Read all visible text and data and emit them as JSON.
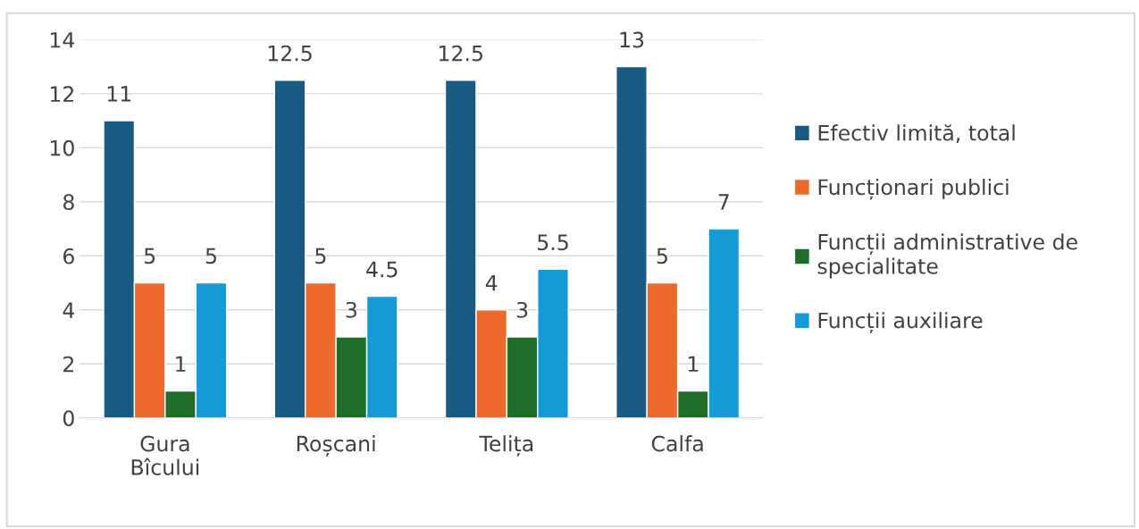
{
  "chart_data": {
    "type": "bar",
    "categories": [
      "Gura\nBîcului",
      "Roșcani",
      "Telița",
      "Calfa"
    ],
    "series": [
      {
        "name": "Efectiv limită, total",
        "color": "#1a5a80",
        "values": [
          11,
          12.5,
          12.5,
          13
        ]
      },
      {
        "name": "Funcționari publici",
        "color": "#ee6a2c",
        "values": [
          5,
          5,
          4,
          5
        ]
      },
      {
        "name": "Funcții administrative de\nspecialitate",
        "color": "#1e6e2a",
        "values": [
          1,
          3,
          3,
          1
        ]
      },
      {
        "name": "Funcții auxiliare",
        "color": "#159ad8",
        "values": [
          5,
          4.5,
          5.5,
          7
        ]
      }
    ],
    "ylim": [
      0,
      14
    ],
    "yticks": [
      0,
      2,
      4,
      6,
      8,
      10,
      12,
      14
    ],
    "grid": "y",
    "legend": "right",
    "data_labels": true
  }
}
